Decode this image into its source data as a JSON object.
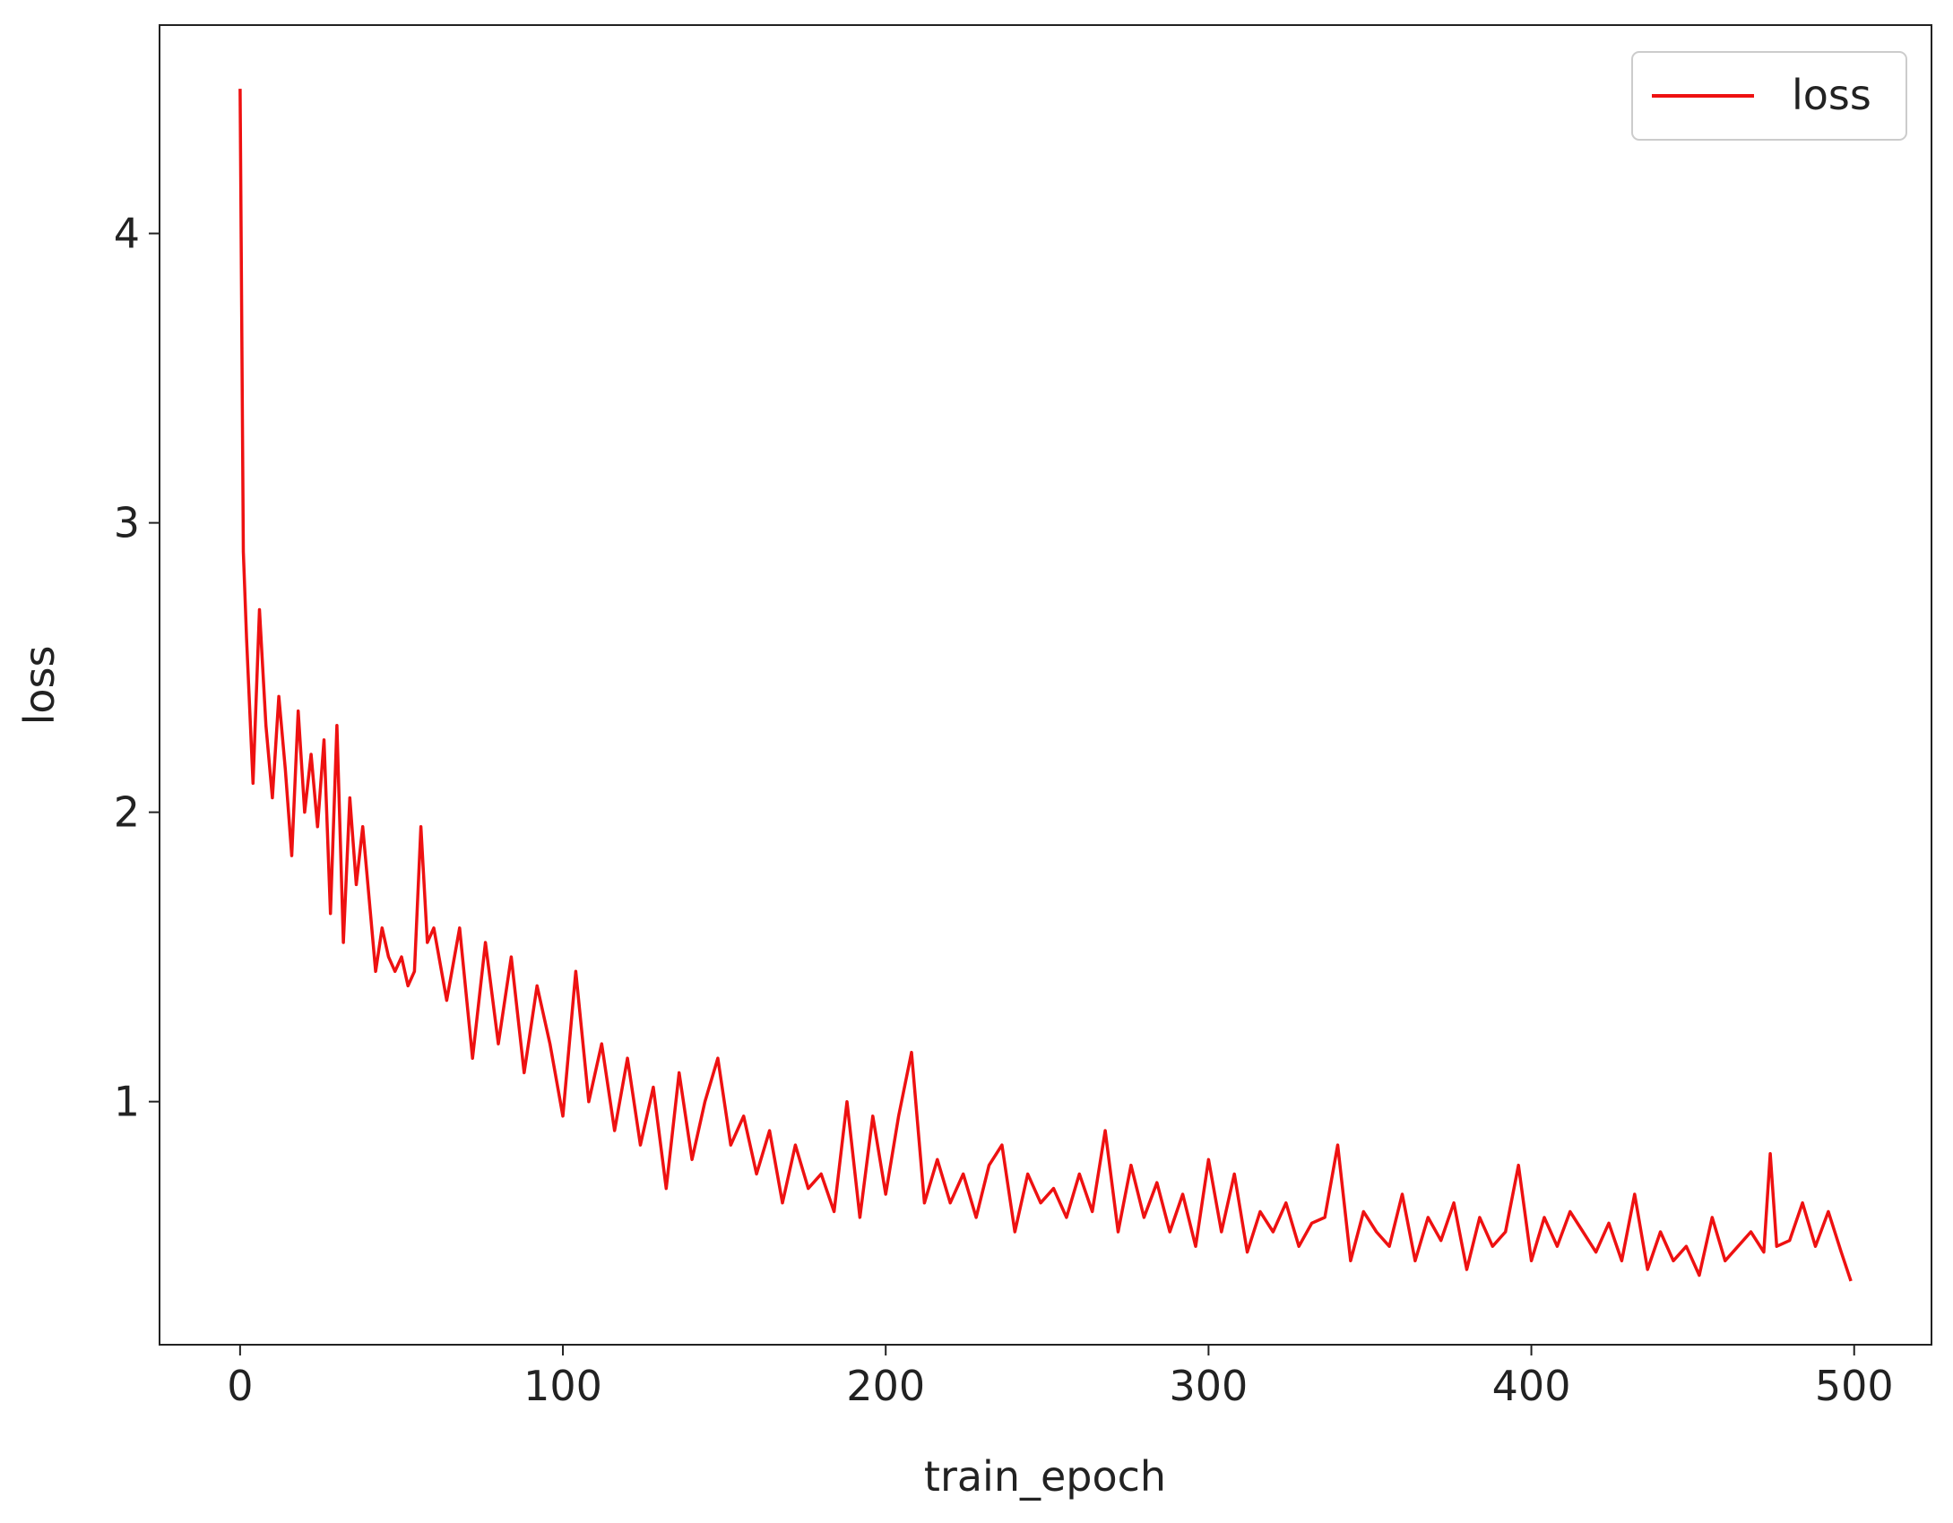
{
  "chart_data": {
    "type": "line",
    "x_label": "train_epoch",
    "y_label": "loss",
    "x": [
      0,
      1,
      2,
      4,
      6,
      8,
      10,
      12,
      14,
      16,
      18,
      20,
      22,
      24,
      26,
      28,
      30,
      32,
      34,
      36,
      38,
      40,
      42,
      44,
      46,
      48,
      50,
      52,
      54,
      56,
      58,
      60,
      64,
      68,
      72,
      76,
      80,
      84,
      88,
      92,
      96,
      100,
      104,
      108,
      112,
      116,
      120,
      124,
      128,
      132,
      136,
      140,
      144,
      148,
      152,
      156,
      160,
      164,
      168,
      172,
      176,
      180,
      184,
      188,
      192,
      196,
      200,
      204,
      208,
      212,
      216,
      220,
      224,
      228,
      232,
      236,
      240,
      244,
      248,
      252,
      256,
      260,
      264,
      268,
      272,
      276,
      280,
      284,
      288,
      292,
      296,
      300,
      304,
      308,
      312,
      316,
      320,
      324,
      328,
      332,
      336,
      340,
      344,
      348,
      352,
      356,
      360,
      364,
      368,
      372,
      376,
      380,
      384,
      388,
      392,
      396,
      400,
      404,
      408,
      412,
      416,
      420,
      424,
      428,
      432,
      436,
      440,
      444,
      448,
      452,
      456,
      460,
      464,
      468,
      472,
      474,
      476,
      480,
      484,
      488,
      492,
      496,
      499
    ],
    "series": [
      {
        "name": "loss",
        "color": "#ee1111",
        "values": [
          4.5,
          2.9,
          2.6,
          2.1,
          2.7,
          2.3,
          2.05,
          2.4,
          2.15,
          1.85,
          2.35,
          2.0,
          2.2,
          1.95,
          2.25,
          1.65,
          2.3,
          1.55,
          2.05,
          1.75,
          1.95,
          1.7,
          1.45,
          1.6,
          1.5,
          1.45,
          1.5,
          1.4,
          1.45,
          1.95,
          1.55,
          1.6,
          1.35,
          1.6,
          1.15,
          1.55,
          1.2,
          1.5,
          1.1,
          1.4,
          1.2,
          0.95,
          1.45,
          1.0,
          1.2,
          0.9,
          1.15,
          0.85,
          1.05,
          0.7,
          1.1,
          0.8,
          1.0,
          1.15,
          0.85,
          0.95,
          0.75,
          0.9,
          0.65,
          0.85,
          0.7,
          0.75,
          0.62,
          1.0,
          0.6,
          0.95,
          0.68,
          0.95,
          1.17,
          0.65,
          0.8,
          0.65,
          0.75,
          0.6,
          0.78,
          0.85,
          0.55,
          0.75,
          0.65,
          0.7,
          0.6,
          0.75,
          0.62,
          0.9,
          0.55,
          0.78,
          0.6,
          0.72,
          0.55,
          0.68,
          0.5,
          0.8,
          0.55,
          0.75,
          0.48,
          0.62,
          0.55,
          0.65,
          0.5,
          0.58,
          0.6,
          0.85,
          0.45,
          0.62,
          0.55,
          0.5,
          0.68,
          0.45,
          0.6,
          0.52,
          0.65,
          0.42,
          0.6,
          0.5,
          0.55,
          0.78,
          0.45,
          0.6,
          0.5,
          0.62,
          0.55,
          0.48,
          0.58,
          0.45,
          0.68,
          0.42,
          0.55,
          0.45,
          0.5,
          0.4,
          0.6,
          0.45,
          0.5,
          0.55,
          0.48,
          0.82,
          0.5,
          0.52,
          0.65,
          0.5,
          0.62,
          0.48,
          0.38
        ]
      }
    ],
    "xlim": [
      -24.95,
      523.95
    ],
    "ylim": [
      0.16,
      4.72
    ],
    "xticks": [
      0,
      100,
      200,
      300,
      400,
      500
    ],
    "yticks": [
      1,
      2,
      3,
      4
    ],
    "legend": "upper right",
    "grid": false
  }
}
